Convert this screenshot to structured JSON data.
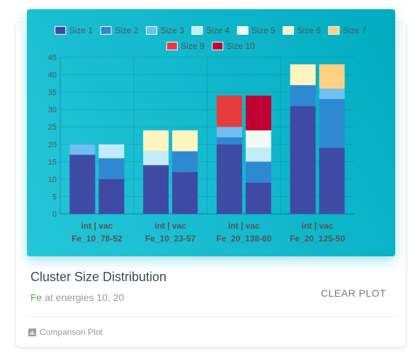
{
  "card": {
    "title": "Cluster Size Distribution",
    "subtitle_element": "Fe",
    "subtitle_rest": " at energies 10, 20",
    "clear_label": "CLEAR PLOT",
    "footer_label": "Comparison Plot",
    "footer_icon": "bar-chart-icon"
  },
  "colors": {
    "panel_from": "#26c6da",
    "panel_to": "#00acc1",
    "subtitle_element": "#4caf50"
  },
  "chart_data": {
    "type": "bar",
    "stacked": true,
    "groups": [
      {
        "label": "int | vac",
        "sublabel": "Fe_10_78-52"
      },
      {
        "label": "int | vac",
        "sublabel": "Fe_10_23-57"
      },
      {
        "label": "int | vac",
        "sublabel": "Fe_20_138-60"
      },
      {
        "label": "int | vac",
        "sublabel": "Fe_20_125-50"
      }
    ],
    "bars_per_group": [
      "int",
      "vac"
    ],
    "ylim": [
      0,
      45
    ],
    "yticks": [
      0,
      5,
      10,
      15,
      20,
      25,
      30,
      35,
      40,
      45
    ],
    "grid": true,
    "legend_position": "top",
    "series": [
      {
        "name": "Size 1",
        "color": "#3f4aa4",
        "values": [
          [
            17,
            10
          ],
          [
            14,
            12
          ],
          [
            20,
            9
          ],
          [
            31,
            19
          ]
        ]
      },
      {
        "name": "Size 2",
        "color": "#2f88d2",
        "values": [
          [
            0,
            6
          ],
          [
            0,
            6
          ],
          [
            2,
            6
          ],
          [
            6,
            14
          ]
        ]
      },
      {
        "name": "Size 3",
        "color": "#6fbfef",
        "values": [
          [
            3,
            0
          ],
          [
            0,
            0
          ],
          [
            3,
            0
          ],
          [
            0,
            3
          ]
        ]
      },
      {
        "name": "Size 4",
        "color": "#c2ecf9",
        "values": [
          [
            0,
            4
          ],
          [
            4,
            0
          ],
          [
            0,
            4
          ],
          [
            0,
            0
          ]
        ]
      },
      {
        "name": "Size 5",
        "color": "#f1fbf6",
        "values": [
          [
            0,
            0
          ],
          [
            0,
            0
          ],
          [
            0,
            5
          ],
          [
            0,
            0
          ]
        ]
      },
      {
        "name": "Size 6",
        "color": "#fef4c0",
        "values": [
          [
            0,
            0
          ],
          [
            6,
            6
          ],
          [
            0,
            0
          ],
          [
            6,
            0
          ]
        ]
      },
      {
        "name": "Size 7",
        "color": "#fed182",
        "values": [
          [
            0,
            0
          ],
          [
            0,
            0
          ],
          [
            0,
            0
          ],
          [
            0,
            7
          ]
        ]
      },
      {
        "name": "Size 9",
        "color": "#e63c3c",
        "values": [
          [
            0,
            0
          ],
          [
            0,
            0
          ],
          [
            9,
            0
          ],
          [
            0,
            0
          ]
        ]
      },
      {
        "name": "Size 10",
        "color": "#c00032",
        "values": [
          [
            0,
            0
          ],
          [
            0,
            0
          ],
          [
            0,
            10
          ],
          [
            0,
            0
          ]
        ]
      }
    ]
  }
}
